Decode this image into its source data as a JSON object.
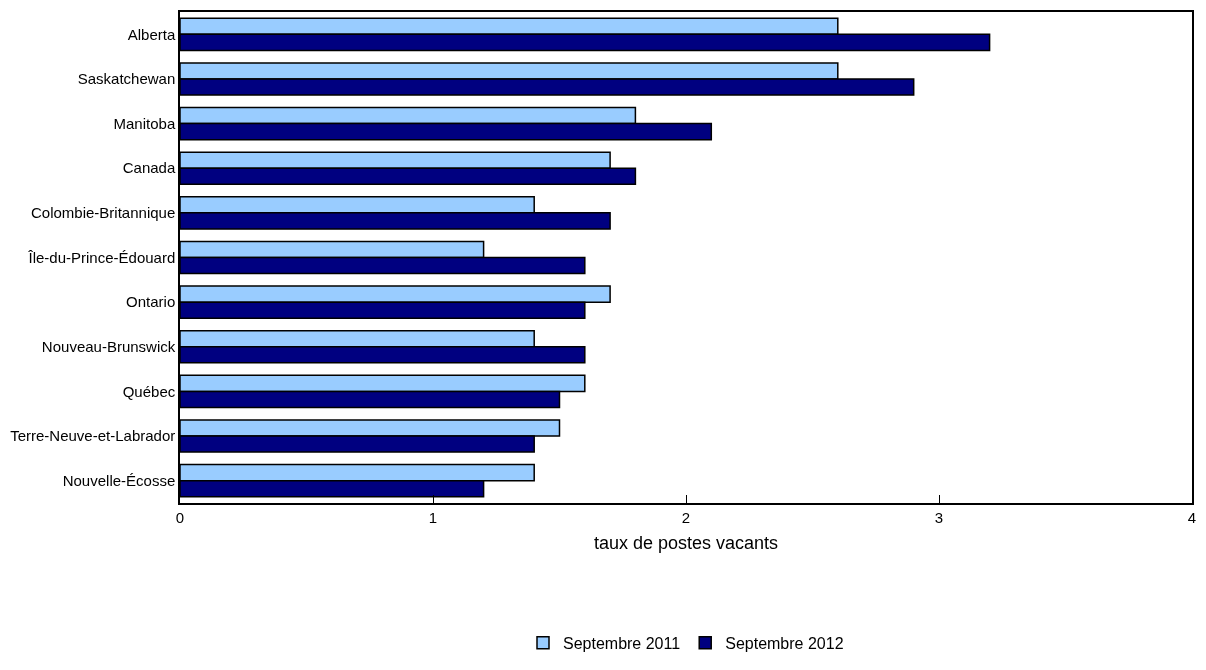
{
  "chart_data": {
    "type": "bar",
    "orientation": "horizontal",
    "xlabel": "taux de postes vacants",
    "categories": [
      "Alberta",
      "Saskatchewan",
      "Manitoba",
      "Canada",
      "Colombie-Britannique",
      "Île-du-Prince-Édouard",
      "Ontario",
      "Nouveau-Brunswick",
      "Québec",
      "Terre-Neuve-et-Labrador",
      "Nouvelle-Écosse"
    ],
    "series": [
      {
        "name": "Septembre 2011",
        "color": "#99ccff",
        "values": [
          2.6,
          2.6,
          1.8,
          1.7,
          1.4,
          1.2,
          1.7,
          1.4,
          1.6,
          1.5,
          1.4
        ]
      },
      {
        "name": "Septembre 2012",
        "color": "#000080",
        "values": [
          3.2,
          2.9,
          2.1,
          1.8,
          1.7,
          1.6,
          1.6,
          1.6,
          1.5,
          1.4,
          1.2
        ]
      }
    ],
    "xlim": [
      0,
      4
    ],
    "xticks": [
      0,
      1,
      2,
      3,
      4
    ],
    "legend": "bottom"
  }
}
